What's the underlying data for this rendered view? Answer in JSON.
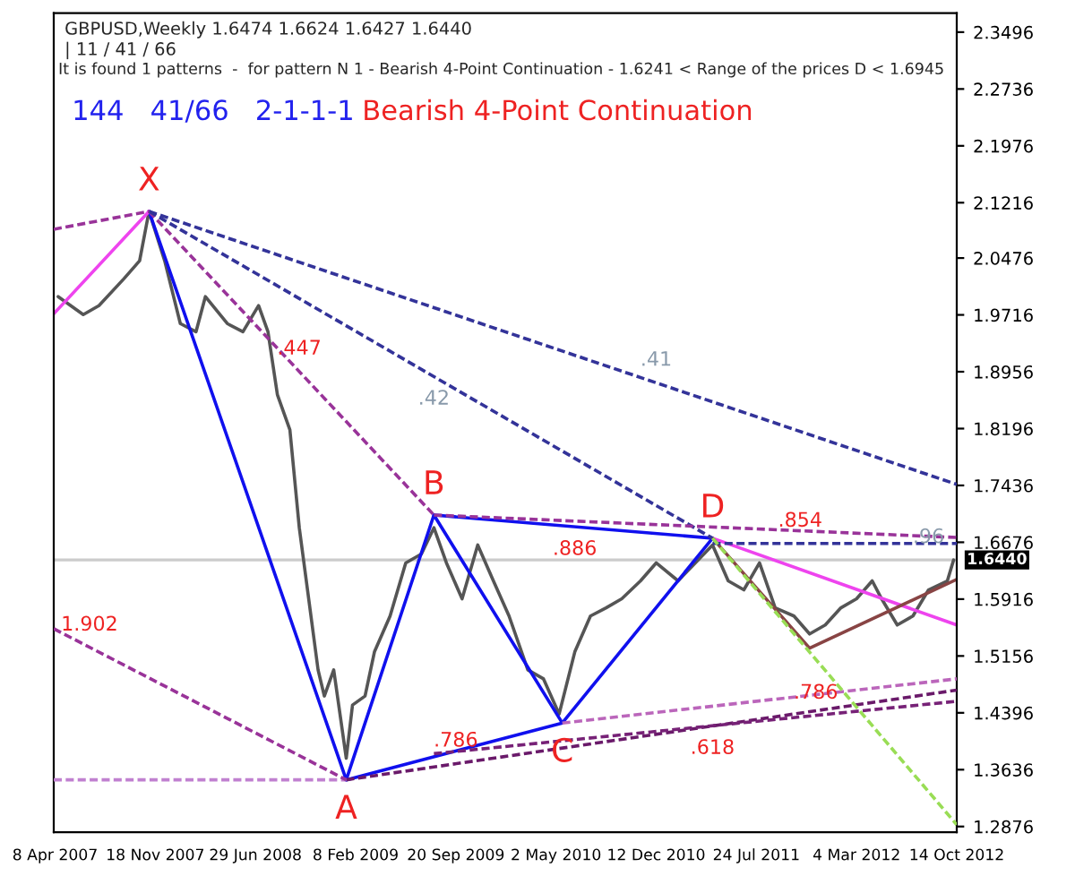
{
  "chart_data": {
    "type": "line",
    "title": "GBPUSD,Weekly 1.6474 1.6624 1.6427 1.6440",
    "subtitle": "| 11 / 41 / 66",
    "annotations": [
      "It is found 1 patterns  -  for pattern N 1 - Bearish 4-Point Continuation - 1.6241 < Range of the prices D < 1.6945",
      "144   41/66   2-1-1-1",
      "Bearish 4-Point Continuation",
      {
        "text": "X",
        "x": "2007-11-04",
        "y": 2.11
      },
      {
        "text": "A",
        "x": "2009-01-18",
        "y": 1.35
      },
      {
        "text": "B",
        "x": "2009-08-02",
        "y": 1.704
      },
      {
        "text": "C",
        "x": "2010-05-16",
        "y": 1.426
      },
      {
        "text": "D",
        "x": "2011-04-17",
        "y": 1.673
      },
      {
        "text": ".447",
        "x": "2008-10-05",
        "y": 1.896
      },
      {
        "text": ".886",
        "x": "2010-06-13",
        "y": 1.688
      },
      {
        "text": ".854",
        "x": "2011-10-30",
        "y": 1.666
      },
      {
        "text": "1.902",
        "x": "2007-06-24",
        "y": 1.527
      },
      {
        "text": ".786",
        "x": "2009-09-20",
        "y": 1.372
      },
      {
        "text": ".786",
        "x": "2011-12-04",
        "y": 1.436
      },
      {
        "text": ".618",
        "x": "2011-04-17",
        "y": 1.422
      },
      {
        "text": ".42",
        "x": "2009-08-02",
        "y": 1.889
      },
      {
        "text": ".41",
        "x": "2010-12-12",
        "y": 1.881
      },
      {
        "text": ".96",
        "x": "2012-08-12",
        "y": 1.644
      }
    ],
    "xlim": [
      "2007-04-05",
      "2012-10-14"
    ],
    "xticks": [
      {
        "value": "2007-04-08",
        "label": "8 Apr 2007"
      },
      {
        "value": "2007-11-18",
        "label": "18 Nov 2007"
      },
      {
        "value": "2008-06-29",
        "label": "29 Jun 2008"
      },
      {
        "value": "2009-02-08",
        "label": "8 Feb 2009"
      },
      {
        "value": "2009-09-20",
        "label": "20 Sep 2009"
      },
      {
        "value": "2010-05-02",
        "label": "2 May 2010"
      },
      {
        "value": "2010-12-12",
        "label": "12 Dec 2010"
      },
      {
        "value": "2011-07-24",
        "label": "24 Jul 2011"
      },
      {
        "value": "2012-03-04",
        "label": "4 Mar 2012"
      },
      {
        "value": "2012-10-14",
        "label": "14 Oct 2012"
      }
    ],
    "ylim": [
      1.28,
      2.375
    ],
    "yticks": [
      1.2876,
      1.3636,
      1.4396,
      1.5156,
      1.5916,
      1.6676,
      1.7436,
      1.8196,
      1.8956,
      1.9716,
      2.0476,
      2.1216,
      2.1976,
      2.2736,
      2.3496
    ],
    "ref_lines": [
      {
        "axis": "y",
        "value": 1.644,
        "label": "1.6440",
        "color": "#cccccc"
      }
    ],
    "grid": false,
    "legend": false,
    "series": [
      {
        "color": "#555555",
        "line_style": "solid",
        "x": [
          "2007-04-15",
          "2007-06-10",
          "2007-07-15",
          "2007-09-09",
          "2007-10-14",
          "2007-11-04",
          "2007-12-09",
          "2008-01-13",
          "2008-02-17",
          "2008-03-09",
          "2008-04-27",
          "2008-06-01",
          "2008-07-06",
          "2008-07-27",
          "2008-08-17",
          "2008-09-14",
          "2008-10-05",
          "2008-10-26",
          "2008-11-16",
          "2008-11-30",
          "2008-12-21",
          "2009-01-18",
          "2009-02-01",
          "2009-03-01",
          "2009-03-22",
          "2009-04-26",
          "2009-05-31",
          "2009-07-05",
          "2009-08-02",
          "2009-08-30",
          "2009-10-04",
          "2009-11-08",
          "2009-12-13",
          "2010-01-17",
          "2010-02-28",
          "2010-04-04",
          "2010-05-09",
          "2010-06-13",
          "2010-07-18",
          "2010-08-22",
          "2010-09-26",
          "2010-11-07",
          "2010-12-12",
          "2011-01-30",
          "2011-04-17",
          "2011-05-22",
          "2011-06-26",
          "2011-07-31",
          "2011-09-04",
          "2011-10-16",
          "2011-11-20",
          "2011-12-25",
          "2012-01-29",
          "2012-03-04",
          "2012-04-08",
          "2012-04-29",
          "2012-06-03",
          "2012-07-08",
          "2012-08-12",
          "2012-09-23",
          "2012-10-07"
        ],
        "values": [
          1.996,
          1.972,
          1.984,
          2.02,
          2.044,
          2.11,
          2.044,
          1.96,
          1.949,
          1.996,
          1.96,
          1.949,
          1.984,
          1.949,
          1.865,
          1.818,
          1.687,
          1.592,
          1.497,
          1.462,
          1.497,
          1.379,
          1.45,
          1.462,
          1.521,
          1.569,
          1.64,
          1.652,
          1.687,
          1.64,
          1.592,
          1.664,
          1.616,
          1.569,
          1.497,
          1.485,
          1.438,
          1.521,
          1.569,
          1.58,
          1.592,
          1.616,
          1.64,
          1.616,
          1.664,
          1.616,
          1.604,
          1.64,
          1.58,
          1.569,
          1.545,
          1.557,
          1.58,
          1.592,
          1.616,
          1.592,
          1.557,
          1.569,
          1.604,
          1.616,
          1.644
        ]
      },
      {
        "color": "#1010ee",
        "line_style": "solid",
        "x": [
          "2007-11-04",
          "2009-01-18",
          "2009-08-02",
          "2010-05-16",
          "2011-04-17"
        ],
        "values": [
          2.11,
          1.35,
          1.704,
          1.426,
          1.673
        ]
      },
      {
        "color": "#1010ee",
        "line_style": "solid",
        "x": [
          "2009-01-18",
          "2010-05-16"
        ],
        "values": [
          1.35,
          1.426
        ]
      },
      {
        "color": "#1010ee",
        "line_style": "solid",
        "x": [
          "2009-08-02",
          "2011-04-17"
        ],
        "values": [
          1.704,
          1.673
        ]
      },
      {
        "color": "#993399",
        "line_style": "dashed",
        "x": [
          "2007-11-04",
          "2009-08-02"
        ],
        "values": [
          2.11,
          1.704
        ]
      },
      {
        "color": "#333399",
        "line_style": "dashed",
        "x": [
          "2007-11-04",
          "2011-04-17"
        ],
        "values": [
          2.11,
          1.673
        ]
      },
      {
        "color": "#333399",
        "line_style": "dashed",
        "x": [
          "2007-11-04",
          "2012-10-14"
        ],
        "values": [
          2.11,
          1.745
        ]
      },
      {
        "color": "#993399",
        "line_style": "dashed",
        "x": [
          "2007-04-05",
          "2007-11-04"
        ],
        "values": [
          2.086,
          2.11
        ]
      },
      {
        "color": "#993399",
        "line_style": "dashed",
        "x": [
          "2009-08-02",
          "2012-10-14"
        ],
        "values": [
          1.704,
          1.674
        ]
      },
      {
        "color": "#333399",
        "line_style": "dashed",
        "x": [
          "2011-04-17",
          "2012-10-14"
        ],
        "values": [
          1.666,
          1.666
        ]
      },
      {
        "color": "#6a1a6a",
        "line_style": "dashed",
        "x": [
          "2009-01-18",
          "2012-10-14"
        ],
        "values": [
          1.35,
          1.47
        ]
      },
      {
        "color": "#c080d0",
        "line_style": "dashed",
        "x": [
          "2007-04-05",
          "2009-01-18"
        ],
        "values": [
          1.35,
          1.35
        ]
      },
      {
        "color": "#993399",
        "line_style": "dashed",
        "x": [
          "2007-04-05",
          "2009-01-18"
        ],
        "values": [
          1.552,
          1.35
        ]
      },
      {
        "color": "#bb66bb",
        "line_style": "dashed",
        "x": [
          "2010-05-16",
          "2012-10-14"
        ],
        "values": [
          1.426,
          1.485
        ]
      },
      {
        "color": "#772277",
        "line_style": "dashed",
        "x": [
          "2009-08-02",
          "2012-10-14"
        ],
        "values": [
          1.385,
          1.455
        ]
      },
      {
        "color": "#ee44ee",
        "line_style": "solid",
        "x": [
          "2007-04-05",
          "2007-11-04"
        ],
        "values": [
          1.973,
          2.11
        ]
      },
      {
        "color": "#ee44ee",
        "line_style": "solid",
        "x": [
          "2011-04-17",
          "2012-10-14"
        ],
        "values": [
          1.673,
          1.557
        ]
      },
      {
        "color": "#99dd55",
        "line_style": "dashed",
        "x": [
          "2011-04-17",
          "2012-10-14"
        ],
        "values": [
          1.673,
          1.29
        ]
      },
      {
        "color": "#884444",
        "line_style": "solid",
        "x": [
          "2011-04-17",
          "2011-11-20",
          "2012-10-14"
        ],
        "values": [
          1.673,
          1.526,
          1.618
        ]
      }
    ]
  }
}
